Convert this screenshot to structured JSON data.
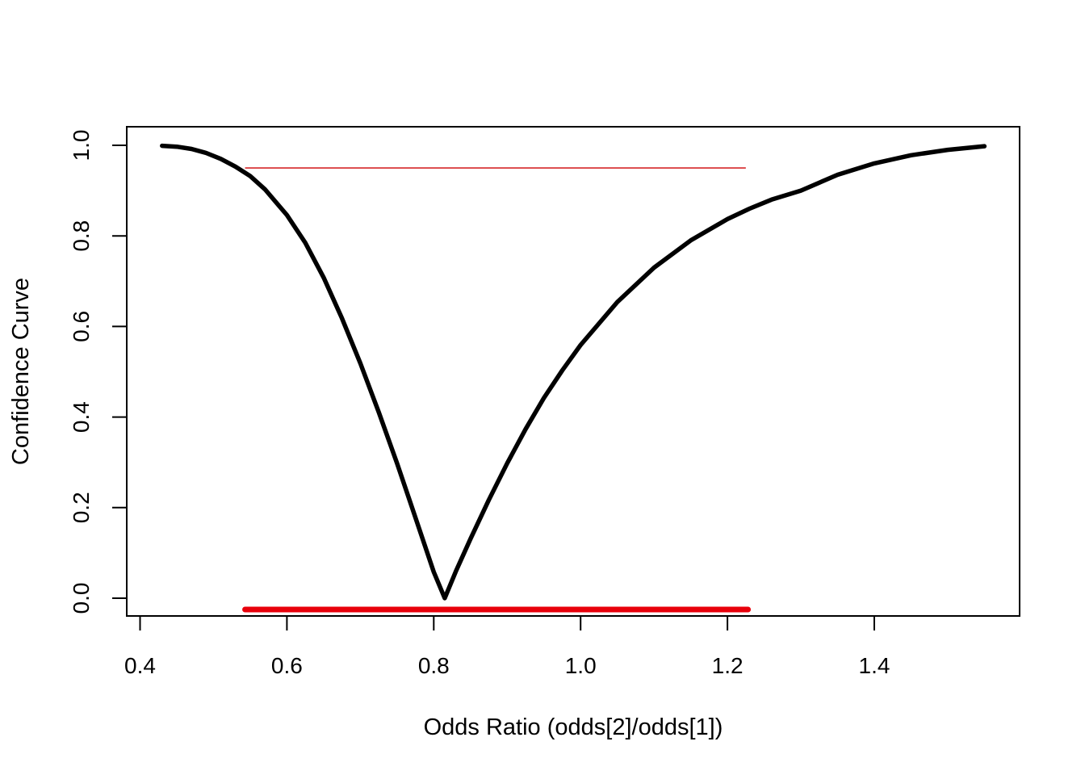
{
  "chart_data": {
    "type": "line",
    "title": "",
    "xlabel": "Odds Ratio (odds[2]/odds[1])",
    "ylabel": "Confidence Curve",
    "xlim": [
      0.43,
      1.55
    ],
    "ylim": [
      0.0,
      1.0
    ],
    "x_ticks": [
      0.4,
      0.6,
      0.8,
      1.0,
      1.2,
      1.4
    ],
    "x_tick_labels": [
      "0.4",
      "0.6",
      "0.8",
      "1.0",
      "1.2",
      "1.4"
    ],
    "y_ticks": [
      0.0,
      0.2,
      0.4,
      0.6,
      0.8,
      1.0
    ],
    "y_tick_labels": [
      "0.0",
      "0.2",
      "0.4",
      "0.6",
      "0.8",
      "1.0"
    ],
    "grid": false,
    "series": [
      {
        "color": "#000000",
        "x": [
          0.43,
          0.45,
          0.47,
          0.49,
          0.51,
          0.53,
          0.55,
          0.57,
          0.6,
          0.625,
          0.65,
          0.675,
          0.7,
          0.725,
          0.75,
          0.775,
          0.8,
          0.815,
          0.83,
          0.85,
          0.875,
          0.9,
          0.925,
          0.95,
          0.975,
          1.0,
          1.05,
          1.1,
          1.15,
          1.2,
          1.23,
          1.26,
          1.3,
          1.35,
          1.4,
          1.45,
          1.5,
          1.55
        ],
        "y": [
          0.999,
          0.997,
          0.992,
          0.983,
          0.97,
          0.953,
          0.932,
          0.903,
          0.846,
          0.785,
          0.708,
          0.618,
          0.519,
          0.411,
          0.298,
          0.178,
          0.058,
          0.0,
          0.059,
          0.131,
          0.217,
          0.298,
          0.373,
          0.442,
          0.503,
          0.559,
          0.654,
          0.73,
          0.79,
          0.837,
          0.86,
          0.88,
          0.9,
          0.935,
          0.96,
          0.978,
          0.99,
          0.998
        ]
      }
    ],
    "reference_line": {
      "y": 0.95,
      "x_start": 0.543,
      "x_end": 1.225,
      "color": "#d62728"
    },
    "interval_bar": {
      "y": -0.025,
      "x_start": 0.543,
      "x_end": 1.228,
      "color": "#e8000b"
    }
  }
}
